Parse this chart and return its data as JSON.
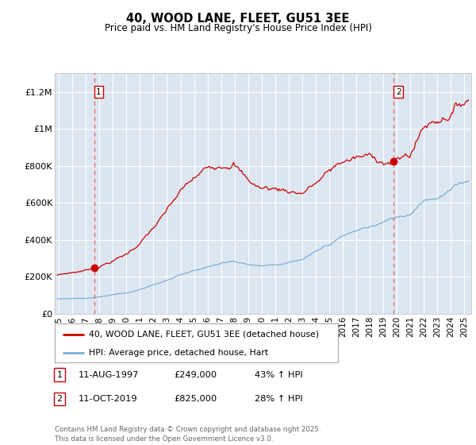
{
  "title": "40, WOOD LANE, FLEET, GU51 3EE",
  "subtitle": "Price paid vs. HM Land Registry's House Price Index (HPI)",
  "ylabel_ticks": [
    "£0",
    "£200K",
    "£400K",
    "£600K",
    "£800K",
    "£1M",
    "£1.2M"
  ],
  "ytick_vals": [
    0,
    200000,
    400000,
    600000,
    800000,
    1000000,
    1200000
  ],
  "ylim": [
    0,
    1300000
  ],
  "xlim_start": 1994.7,
  "xlim_end": 2025.5,
  "xticks": [
    1995,
    1996,
    1997,
    1998,
    1999,
    2000,
    2001,
    2002,
    2003,
    2004,
    2005,
    2006,
    2007,
    2008,
    2009,
    2010,
    2011,
    2012,
    2013,
    2014,
    2015,
    2016,
    2017,
    2018,
    2019,
    2020,
    2021,
    2022,
    2023,
    2024,
    2025
  ],
  "plot_bg_color": "#dce6f1",
  "grid_color": "#ffffff",
  "sale1_date": 1997.61,
  "sale1_price": 249000,
  "sale2_date": 2019.78,
  "sale2_price": 825000,
  "line1_color": "#cc0000",
  "line2_color": "#7bafd4",
  "marker_color": "#cc0000",
  "vline_color": "#e87070",
  "legend1": "40, WOOD LANE, FLEET, GU51 3EE (detached house)",
  "legend2": "HPI: Average price, detached house, Hart",
  "note1_label": "1",
  "note1_date": "11-AUG-1997",
  "note1_price": "£249,000",
  "note1_hpi": "43% ↑ HPI",
  "note2_label": "2",
  "note2_date": "11-OCT-2019",
  "note2_price": "£825,000",
  "note2_hpi": "28% ↑ HPI",
  "copyright": "Contains HM Land Registry data © Crown copyright and database right 2025.\nThis data is licensed under the Open Government Licence v3.0."
}
